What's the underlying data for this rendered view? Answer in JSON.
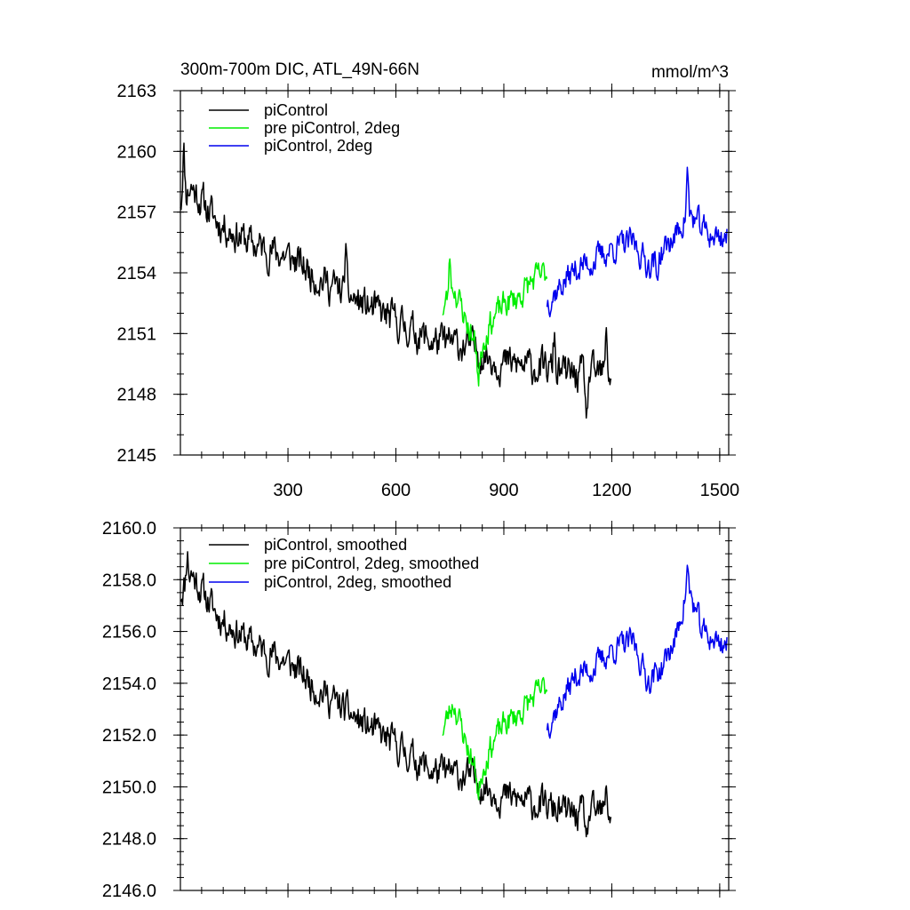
{
  "figure": {
    "title": "300m-700m DIC, ATL_49N-66N",
    "units": "mmol/m^3"
  },
  "chart_data": [
    {
      "type": "line",
      "title": "300m-700m DIC, ATL_49N-66N",
      "units": "mmol/m^3",
      "xlim": [
        1,
        1525
      ],
      "ylim": [
        2145,
        2163
      ],
      "xticks": [
        300,
        600,
        900,
        1200,
        1500
      ],
      "xtick_labels": [
        "300",
        "600",
        "900",
        "1200",
        "1500"
      ],
      "xminor_step": 60,
      "yticks": [
        2145,
        2148,
        2151,
        2154,
        2157,
        2160,
        2163
      ],
      "ytick_labels": [
        "2145",
        "2148",
        "2151",
        "2154",
        "2157",
        "2160",
        "2163"
      ],
      "yminor_step": 1,
      "legend": {
        "position": "top-left"
      },
      "series": [
        {
          "name": "piControl",
          "color": "#000000",
          "anchors": [
            [
              1,
              2157.6
            ],
            [
              30,
              2158.3
            ],
            [
              100,
              2156.6
            ],
            [
              200,
              2155.4
            ],
            [
              300,
              2154.8
            ],
            [
              400,
              2153.6
            ],
            [
              500,
              2152.5
            ],
            [
              600,
              2151.6
            ],
            [
              700,
              2150.6
            ],
            [
              800,
              2150.4
            ],
            [
              900,
              2149.5
            ],
            [
              1000,
              2149.3
            ],
            [
              1100,
              2148.9
            ],
            [
              1200,
              2149.0
            ]
          ],
          "noise": 0.75,
          "spikes": [
            [
              10,
              2.6
            ],
            [
              1130,
              -2.9
            ],
            [
              1185,
              2.1
            ],
            [
              1040,
              1.9
            ],
            [
              460,
              2.2
            ]
          ],
          "seed": 11
        },
        {
          "name": "pre piControl, 2deg",
          "color": "#00ee00",
          "anchors": [
            [
              730,
              2152.2
            ],
            [
              760,
              2153.4
            ],
            [
              800,
              2151.4
            ],
            [
              830,
              2150.0
            ],
            [
              860,
              2151.5
            ],
            [
              900,
              2152.4
            ],
            [
              940,
              2152.8
            ],
            [
              980,
              2153.6
            ],
            [
              1020,
              2154.0
            ]
          ],
          "noise": 0.6,
          "spikes": [
            [
              750,
              1.8
            ],
            [
              830,
              -1.6
            ]
          ],
          "seed": 23
        },
        {
          "name": "piControl, 2deg",
          "color": "#0000ee",
          "anchors": [
            [
              1020,
              2152.6
            ],
            [
              1060,
              2153.4
            ],
            [
              1100,
              2154.2
            ],
            [
              1150,
              2154.6
            ],
            [
              1200,
              2155.2
            ],
            [
              1260,
              2155.5
            ],
            [
              1300,
              2154.4
            ],
            [
              1340,
              2155.0
            ],
            [
              1380,
              2155.9
            ],
            [
              1410,
              2157.0
            ],
            [
              1450,
              2156.2
            ],
            [
              1480,
              2155.8
            ],
            [
              1520,
              2155.8
            ]
          ],
          "noise": 0.6,
          "spikes": [
            [
              1410,
              2.0
            ],
            [
              1325,
              -1.4
            ]
          ],
          "seed": 37
        }
      ]
    },
    {
      "type": "line",
      "title": "",
      "xlim": [
        1,
        1525
      ],
      "ylim": [
        2146.0,
        2160.0
      ],
      "xticks": [
        300,
        600,
        900,
        1200,
        1500
      ],
      "xtick_labels": [],
      "xminor_step": 60,
      "yticks": [
        2146.0,
        2148.0,
        2150.0,
        2152.0,
        2154.0,
        2156.0,
        2158.0,
        2160.0
      ],
      "ytick_labels": [
        "2146.0",
        "2148.0",
        "2150.0",
        "2152.0",
        "2154.0",
        "2156.0",
        "2158.0",
        "2160.0"
      ],
      "yminor_step": 0.5,
      "legend": {
        "position": "top-left"
      },
      "series": [
        {
          "name": "piControl, smoothed",
          "color": "#000000",
          "anchors": [
            [
              1,
              2157.5
            ],
            [
              30,
              2158.3
            ],
            [
              100,
              2156.7
            ],
            [
              200,
              2155.5
            ],
            [
              300,
              2154.8
            ],
            [
              400,
              2153.6
            ],
            [
              500,
              2152.5
            ],
            [
              600,
              2151.6
            ],
            [
              700,
              2150.6
            ],
            [
              800,
              2150.4
            ],
            [
              900,
              2149.6
            ],
            [
              1000,
              2149.3
            ],
            [
              1100,
              2148.9
            ],
            [
              1200,
              2149.0
            ]
          ],
          "noise": 0.55,
          "spikes": [
            [
              20,
              1.2
            ],
            [
              1130,
              -1.3
            ],
            [
              1185,
              0.9
            ]
          ],
          "seed": 11
        },
        {
          "name": "pre piControl, 2deg, smoothed",
          "color": "#00ee00",
          "anchors": [
            [
              730,
              2152.2
            ],
            [
              760,
              2153.3
            ],
            [
              800,
              2151.5
            ],
            [
              830,
              2150.2
            ],
            [
              860,
              2151.5
            ],
            [
              900,
              2152.4
            ],
            [
              940,
              2152.8
            ],
            [
              980,
              2153.4
            ],
            [
              1020,
              2153.9
            ]
          ],
          "noise": 0.45,
          "spikes": [
            [
              830,
              -0.7
            ]
          ],
          "seed": 23
        },
        {
          "name": "piControl, 2deg, smoothed",
          "color": "#0000ee",
          "anchors": [
            [
              1020,
              2152.4
            ],
            [
              1060,
              2153.3
            ],
            [
              1100,
              2154.3
            ],
            [
              1150,
              2154.6
            ],
            [
              1200,
              2155.3
            ],
            [
              1260,
              2155.6
            ],
            [
              1300,
              2154.1
            ],
            [
              1340,
              2154.6
            ],
            [
              1380,
              2155.8
            ],
            [
              1410,
              2157.8
            ],
            [
              1450,
              2156.0
            ],
            [
              1480,
              2155.7
            ],
            [
              1520,
              2155.5
            ]
          ],
          "noise": 0.45,
          "spikes": [
            [
              1410,
              0.6
            ]
          ],
          "seed": 37
        }
      ]
    }
  ]
}
